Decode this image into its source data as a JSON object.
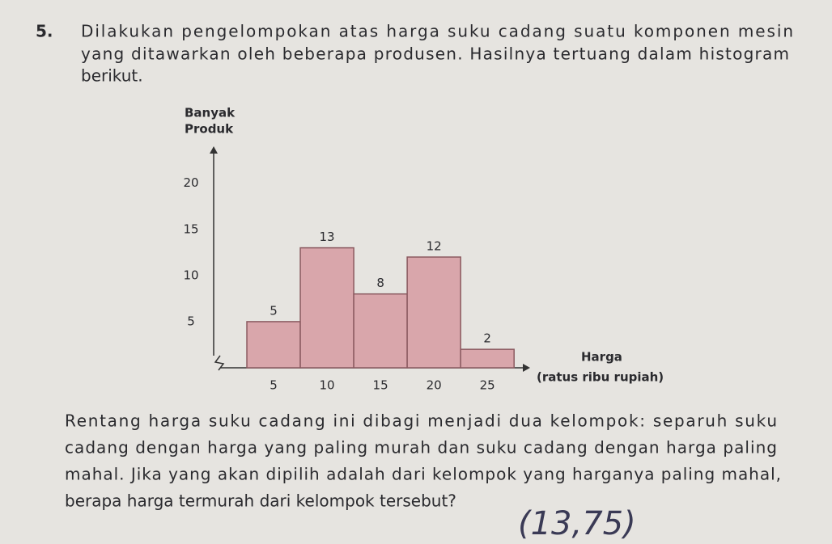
{
  "number": "5.",
  "intro": [
    "Dilakukan pengelompokan atas harga suku cadang suatu komponen mesin",
    "yang ditawarkan oleh beberapa produsen. Hasilnya tertuang dalam histogram",
    "berikut."
  ],
  "chart_data": {
    "type": "histogram",
    "ylabel": [
      "Banyak",
      "Produk"
    ],
    "xlabel": [
      "Harga",
      "(ratus ribu rupiah)"
    ],
    "bins": [
      2.5,
      7.5,
      12.5,
      17.5,
      22.5,
      27.5
    ],
    "values": [
      5,
      13,
      8,
      12,
      2
    ],
    "color": "#d9a6ab",
    "xlim": [
      0,
      29
    ],
    "xticks": [
      5,
      10,
      15,
      20,
      25
    ],
    "ylim": [
      0,
      24
    ],
    "yticks": [
      5,
      10,
      15,
      20
    ],
    "grid": false
  },
  "question": [
    "Rentang harga suku cadang ini dibagi menjadi dua kelompok: separuh suku",
    "cadang dengan harga yang paling murah dan suku cadang dengan harga paling",
    "mahal. Jika yang akan dipilih adalah dari kelompok yang harganya paling mahal,",
    "berapa harga termurah dari kelompok tersebut?"
  ],
  "handwritten_answer": "(13,75)"
}
